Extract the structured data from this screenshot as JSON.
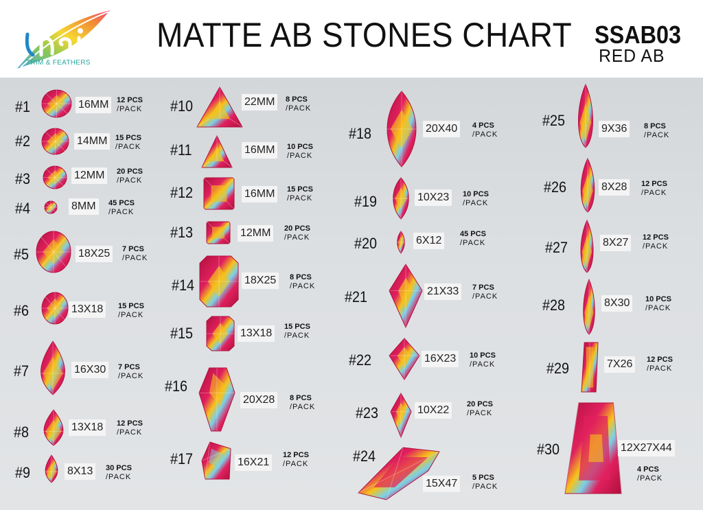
{
  "header": {
    "logo_text": "TRIM & FEATHERS",
    "title": "MATTE AB STONES CHART",
    "code": "SSAB03",
    "color_name": "RED AB"
  },
  "colors": {
    "stone_base": "#e0205e",
    "stone_dark": "#b0103e",
    "stone_yellow": "#f6c21a",
    "stone_ab": "#7ad0e8"
  },
  "items": [
    {
      "num": "#1",
      "size": "16MM",
      "pcs": "12 PCS",
      "pack": "/PACK",
      "shape": "round"
    },
    {
      "num": "#2",
      "size": "14MM",
      "pcs": "15 PCS",
      "pack": "/PACK",
      "shape": "round"
    },
    {
      "num": "#3",
      "size": "12MM",
      "pcs": "20 PCS",
      "pack": "/PACK",
      "shape": "round"
    },
    {
      "num": "#4",
      "size": "8MM",
      "pcs": "45 PCS",
      "pack": "/PACK",
      "shape": "round"
    },
    {
      "num": "#5",
      "size": "18X25",
      "pcs": "7 PCS",
      "pack": "/PACK",
      "shape": "oval"
    },
    {
      "num": "#6",
      "size": "13X18",
      "pcs": "15 PCS",
      "pack": "/PACK",
      "shape": "oval"
    },
    {
      "num": "#7",
      "size": "16X30",
      "pcs": "7 PCS",
      "pack": "/PACK",
      "shape": "drop"
    },
    {
      "num": "#8",
      "size": "13X18",
      "pcs": "12 PCS",
      "pack": "/PACK",
      "shape": "drop"
    },
    {
      "num": "#9",
      "size": "8X13",
      "pcs": "30 PCS",
      "pack": "/PACK",
      "shape": "drop"
    },
    {
      "num": "#10",
      "size": "22MM",
      "pcs": "8 PCS",
      "pack": "/PACK",
      "shape": "triangle"
    },
    {
      "num": "#11",
      "size": "16MM",
      "pcs": "10 PCS",
      "pack": "/PACK",
      "shape": "triangle"
    },
    {
      "num": "#12",
      "size": "16MM",
      "pcs": "15 PCS",
      "pack": "/PACK",
      "shape": "square"
    },
    {
      "num": "#13",
      "size": "12MM",
      "pcs": "20 PCS",
      "pack": "/PACK",
      "shape": "square"
    },
    {
      "num": "#14",
      "size": "18X25",
      "pcs": "8 PCS",
      "pack": "/PACK",
      "shape": "octagon"
    },
    {
      "num": "#15",
      "size": "13X18",
      "pcs": "15 PCS",
      "pack": "/PACK",
      "shape": "octagon"
    },
    {
      "num": "#16",
      "size": "20X28",
      "pcs": "8 PCS",
      "pack": "/PACK",
      "shape": "kite"
    },
    {
      "num": "#17",
      "size": "16X21",
      "pcs": "12 PCS",
      "pack": "/PACK",
      "shape": "freeform"
    },
    {
      "num": "#18",
      "size": "20X40",
      "pcs": "4 PCS",
      "pack": "/PACK",
      "shape": "navette"
    },
    {
      "num": "#19",
      "size": "10X23",
      "pcs": "10 PCS",
      "pack": "/PACK",
      "shape": "navette"
    },
    {
      "num": "#20",
      "size": "6X12",
      "pcs": "45 PCS",
      "pack": "/PACK",
      "shape": "navette"
    },
    {
      "num": "#21",
      "size": "21X33",
      "pcs": "7 PCS",
      "pack": "/PACK",
      "shape": "rhombus"
    },
    {
      "num": "#22",
      "size": "16X23",
      "pcs": "10 PCS",
      "pack": "/PACK",
      "shape": "rhombus"
    },
    {
      "num": "#23",
      "size": "10X22",
      "pcs": "20 PCS",
      "pack": "/PACK",
      "shape": "rhombus"
    },
    {
      "num": "#24",
      "size": "15X47",
      "pcs": "5 PCS",
      "pack": "/PACK",
      "shape": "long"
    },
    {
      "num": "#25",
      "size": "9X36",
      "pcs": "8 PCS",
      "pack": "/PACK",
      "shape": "teardrop-long"
    },
    {
      "num": "#26",
      "size": "8X28",
      "pcs": "12 PCS",
      "pack": "/PACK",
      "shape": "teardrop-long"
    },
    {
      "num": "#27",
      "size": "8X27",
      "pcs": "12 PCS",
      "pack": "/PACK",
      "shape": "teardrop-long"
    },
    {
      "num": "#28",
      "size": "8X30",
      "pcs": "10 PCS",
      "pack": "/PACK",
      "shape": "teardrop-long"
    },
    {
      "num": "#29",
      "size": "7X26",
      "pcs": "12 PCS",
      "pack": "/PACK",
      "shape": "baguette"
    },
    {
      "num": "#30",
      "size": "12X27X44",
      "pcs": "4 PCS",
      "pack": "/PACK",
      "shape": "trapezoid"
    }
  ]
}
